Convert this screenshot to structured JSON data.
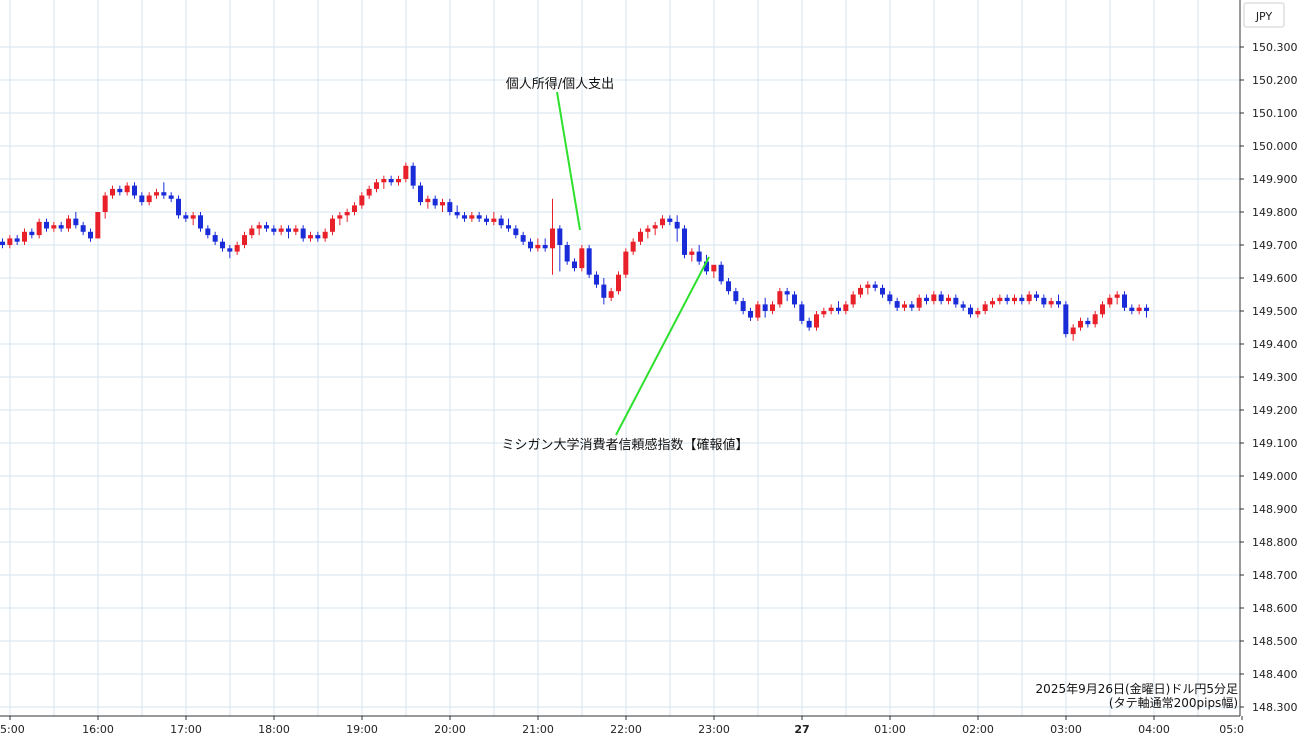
{
  "chart_data": {
    "type": "candlestick",
    "currency_label": "JPY",
    "footer": {
      "line1": "2025年9月26日(金曜日)ドル円5分足",
      "line2": "(タテ軸通常200pips幅)"
    },
    "ylim": [
      148.28,
      150.4
    ],
    "y_ticks": [
      "148.300",
      "148.400",
      "148.500",
      "148.600",
      "148.700",
      "148.800",
      "148.900",
      "149.000",
      "149.100",
      "149.200",
      "149.300",
      "149.400",
      "149.500",
      "149.600",
      "149.700",
      "149.800",
      "149.900",
      "150.000",
      "150.100",
      "150.200",
      "150.300"
    ],
    "x_ticks": [
      "5:00",
      "16:00",
      "17:00",
      "18:00",
      "19:00",
      "20:00",
      "21:00",
      "22:00",
      "23:00",
      "27",
      "01:00",
      "02:00",
      "03:00",
      "04:00",
      "05:0"
    ],
    "annotations": [
      {
        "label": "個人所得/個人支出",
        "time": "21:30"
      },
      {
        "label": "ミシガン大学消費者信頼感指数【確報値】",
        "time": "23:00"
      }
    ],
    "colors": {
      "up": "#e8202a",
      "down": "#1a2bd8",
      "annotation_line": "#2ee02e",
      "grid": "#d6e6ef"
    },
    "candles": [
      [
        149.71,
        149.72,
        149.69,
        149.7
      ],
      [
        149.7,
        149.73,
        149.69,
        149.72
      ],
      [
        149.72,
        149.73,
        149.7,
        149.71
      ],
      [
        149.71,
        149.75,
        149.7,
        149.74
      ],
      [
        149.74,
        149.75,
        149.72,
        149.73
      ],
      [
        149.73,
        149.78,
        149.72,
        149.77
      ],
      [
        149.77,
        149.78,
        149.74,
        149.75
      ],
      [
        149.75,
        149.77,
        149.74,
        149.76
      ],
      [
        149.76,
        149.77,
        149.74,
        149.75
      ],
      [
        149.75,
        149.79,
        149.74,
        149.78
      ],
      [
        149.78,
        149.8,
        149.75,
        149.76
      ],
      [
        149.76,
        149.77,
        149.73,
        149.74
      ],
      [
        149.74,
        149.75,
        149.71,
        149.72
      ],
      [
        149.72,
        149.8,
        149.72,
        149.8
      ],
      [
        149.8,
        149.86,
        149.78,
        149.85
      ],
      [
        149.85,
        149.88,
        149.84,
        149.87
      ],
      [
        149.87,
        149.88,
        149.85,
        149.86
      ],
      [
        149.86,
        149.89,
        149.85,
        149.88
      ],
      [
        149.88,
        149.89,
        149.84,
        149.85
      ],
      [
        149.85,
        149.86,
        149.82,
        149.83
      ],
      [
        149.83,
        149.86,
        149.82,
        149.85
      ],
      [
        149.85,
        149.87,
        149.84,
        149.86
      ],
      [
        149.86,
        149.89,
        149.84,
        149.85
      ],
      [
        149.85,
        149.86,
        149.83,
        149.84
      ],
      [
        149.84,
        149.85,
        149.78,
        149.79
      ],
      [
        149.79,
        149.8,
        149.77,
        149.78
      ],
      [
        149.78,
        149.8,
        149.76,
        149.79
      ],
      [
        149.79,
        149.8,
        149.74,
        149.75
      ],
      [
        149.75,
        149.76,
        149.72,
        149.73
      ],
      [
        149.73,
        149.74,
        149.7,
        149.71
      ],
      [
        149.71,
        149.72,
        149.68,
        149.69
      ],
      [
        149.69,
        149.7,
        149.66,
        149.68
      ],
      [
        149.68,
        149.71,
        149.67,
        149.7
      ],
      [
        149.7,
        149.74,
        149.69,
        149.73
      ],
      [
        149.73,
        149.76,
        149.72,
        149.75
      ],
      [
        149.75,
        149.77,
        149.73,
        149.76
      ],
      [
        149.76,
        149.77,
        149.74,
        149.75
      ],
      [
        149.75,
        149.76,
        149.73,
        149.74
      ],
      [
        149.74,
        149.76,
        149.73,
        149.75
      ],
      [
        149.75,
        149.76,
        149.72,
        149.74
      ],
      [
        149.74,
        149.76,
        149.73,
        149.75
      ],
      [
        149.75,
        149.76,
        149.71,
        149.72
      ],
      [
        149.72,
        149.74,
        149.71,
        149.73
      ],
      [
        149.73,
        149.74,
        149.71,
        149.72
      ],
      [
        149.72,
        149.75,
        149.71,
        149.74
      ],
      [
        149.74,
        149.79,
        149.73,
        149.78
      ],
      [
        149.78,
        149.8,
        149.76,
        149.79
      ],
      [
        149.79,
        149.81,
        149.77,
        149.8
      ],
      [
        149.8,
        149.83,
        149.79,
        149.82
      ],
      [
        149.82,
        149.86,
        149.81,
        149.85
      ],
      [
        149.85,
        149.88,
        149.84,
        149.87
      ],
      [
        149.87,
        149.9,
        149.86,
        149.89
      ],
      [
        149.89,
        149.91,
        149.87,
        149.9
      ],
      [
        149.9,
        149.91,
        149.88,
        149.89
      ],
      [
        149.89,
        149.91,
        149.88,
        149.9
      ],
      [
        149.9,
        149.95,
        149.89,
        149.94
      ],
      [
        149.94,
        149.95,
        149.87,
        149.88
      ],
      [
        149.88,
        149.89,
        149.82,
        149.83
      ],
      [
        149.83,
        149.85,
        149.81,
        149.84
      ],
      [
        149.84,
        149.85,
        149.81,
        149.82
      ],
      [
        149.82,
        149.84,
        149.8,
        149.83
      ],
      [
        149.83,
        149.84,
        149.79,
        149.8
      ],
      [
        149.8,
        149.82,
        149.78,
        149.79
      ],
      [
        149.79,
        149.8,
        149.77,
        149.78
      ],
      [
        149.78,
        149.8,
        149.77,
        149.79
      ],
      [
        149.79,
        149.8,
        149.77,
        149.78
      ],
      [
        149.78,
        149.79,
        149.76,
        149.77
      ],
      [
        149.77,
        149.8,
        149.76,
        149.78
      ],
      [
        149.78,
        149.79,
        149.75,
        149.76
      ],
      [
        149.76,
        149.78,
        149.74,
        149.75
      ],
      [
        149.75,
        149.76,
        149.72,
        149.73
      ],
      [
        149.73,
        149.74,
        149.7,
        149.71
      ],
      [
        149.71,
        149.72,
        149.68,
        149.69
      ],
      [
        149.69,
        149.72,
        149.68,
        149.7
      ],
      [
        149.7,
        149.72,
        149.68,
        149.69
      ],
      [
        149.69,
        149.84,
        149.61,
        149.75
      ],
      [
        149.75,
        149.76,
        149.62,
        149.7
      ],
      [
        149.7,
        149.71,
        149.64,
        149.65
      ],
      [
        149.65,
        149.66,
        149.62,
        149.63
      ],
      [
        149.63,
        149.7,
        149.62,
        149.69
      ],
      [
        149.69,
        149.7,
        149.6,
        149.61
      ],
      [
        149.61,
        149.62,
        149.57,
        149.58
      ],
      [
        149.58,
        149.6,
        149.52,
        149.54
      ],
      [
        149.54,
        149.57,
        149.53,
        149.56
      ],
      [
        149.56,
        149.62,
        149.55,
        149.61
      ],
      [
        149.61,
        149.69,
        149.6,
        149.68
      ],
      [
        149.68,
        149.72,
        149.67,
        149.71
      ],
      [
        149.71,
        149.75,
        149.7,
        149.74
      ],
      [
        149.74,
        149.76,
        149.72,
        149.75
      ],
      [
        149.75,
        149.77,
        149.73,
        149.76
      ],
      [
        149.76,
        149.79,
        149.75,
        149.78
      ],
      [
        149.78,
        149.79,
        149.76,
        149.77
      ],
      [
        149.77,
        149.79,
        149.71,
        149.75
      ],
      [
        149.75,
        149.76,
        149.66,
        149.67
      ],
      [
        149.67,
        149.69,
        149.65,
        149.68
      ],
      [
        149.68,
        149.7,
        149.64,
        149.65
      ],
      [
        149.65,
        149.67,
        149.61,
        149.62
      ],
      [
        149.62,
        149.63,
        149.6,
        149.64
      ],
      [
        149.64,
        149.65,
        149.58,
        149.59
      ],
      [
        149.59,
        149.6,
        149.55,
        149.56
      ],
      [
        149.56,
        149.57,
        149.52,
        149.53
      ],
      [
        149.53,
        149.54,
        149.49,
        149.5
      ],
      [
        149.5,
        149.51,
        149.47,
        149.48
      ],
      [
        149.48,
        149.53,
        149.47,
        149.52
      ],
      [
        149.52,
        149.54,
        149.48,
        149.5
      ],
      [
        149.5,
        149.53,
        149.49,
        149.52
      ],
      [
        149.52,
        149.57,
        149.51,
        149.56
      ],
      [
        149.56,
        149.57,
        149.53,
        149.55
      ],
      [
        149.55,
        149.56,
        149.51,
        149.52
      ],
      [
        149.52,
        149.53,
        149.46,
        149.47
      ],
      [
        149.47,
        149.48,
        149.44,
        149.45
      ],
      [
        149.45,
        149.5,
        149.44,
        149.49
      ],
      [
        149.49,
        149.51,
        149.48,
        149.5
      ],
      [
        149.5,
        149.52,
        149.49,
        149.51
      ],
      [
        149.51,
        149.53,
        149.49,
        149.5
      ],
      [
        149.5,
        149.53,
        149.49,
        149.52
      ],
      [
        149.52,
        149.56,
        149.51,
        149.55
      ],
      [
        149.55,
        149.58,
        149.54,
        149.57
      ],
      [
        149.57,
        149.59,
        149.55,
        149.58
      ],
      [
        149.58,
        149.59,
        149.56,
        149.57
      ],
      [
        149.57,
        149.58,
        149.54,
        149.55
      ],
      [
        149.55,
        149.56,
        149.52,
        149.53
      ],
      [
        149.53,
        149.54,
        149.5,
        149.51
      ],
      [
        149.51,
        149.53,
        149.5,
        149.52
      ],
      [
        149.52,
        149.53,
        149.5,
        149.51
      ],
      [
        149.51,
        149.55,
        149.5,
        149.54
      ],
      [
        149.54,
        149.55,
        149.52,
        149.53
      ],
      [
        149.53,
        149.56,
        149.52,
        149.55
      ],
      [
        149.55,
        149.56,
        149.52,
        149.53
      ],
      [
        149.53,
        149.55,
        149.52,
        149.54
      ],
      [
        149.54,
        149.55,
        149.51,
        149.52
      ],
      [
        149.52,
        149.53,
        149.5,
        149.51
      ],
      [
        149.51,
        149.52,
        149.48,
        149.49
      ],
      [
        149.49,
        149.51,
        149.48,
        149.5
      ],
      [
        149.5,
        149.53,
        149.49,
        149.52
      ],
      [
        149.52,
        149.54,
        149.51,
        149.53
      ],
      [
        149.53,
        149.55,
        149.52,
        149.54
      ],
      [
        149.54,
        149.55,
        149.52,
        149.53
      ],
      [
        149.53,
        149.55,
        149.52,
        149.54
      ],
      [
        149.54,
        149.55,
        149.52,
        149.53
      ],
      [
        149.53,
        149.56,
        149.52,
        149.55
      ],
      [
        149.55,
        149.56,
        149.53,
        149.54
      ],
      [
        149.54,
        149.55,
        149.51,
        149.52
      ],
      [
        149.52,
        149.54,
        149.51,
        149.53
      ],
      [
        149.53,
        149.55,
        149.51,
        149.52
      ],
      [
        149.52,
        149.53,
        149.42,
        149.43
      ],
      [
        149.43,
        149.46,
        149.41,
        149.45
      ],
      [
        149.45,
        149.48,
        149.44,
        149.47
      ],
      [
        149.47,
        149.48,
        149.45,
        149.46
      ],
      [
        149.46,
        149.5,
        149.45,
        149.49
      ],
      [
        149.49,
        149.53,
        149.48,
        149.52
      ],
      [
        149.52,
        149.55,
        149.51,
        149.54
      ],
      [
        149.54,
        149.56,
        149.52,
        149.55
      ],
      [
        149.55,
        149.56,
        149.5,
        149.51
      ],
      [
        149.51,
        149.52,
        149.49,
        149.5
      ],
      [
        149.5,
        149.52,
        149.49,
        149.51
      ],
      [
        149.51,
        149.52,
        149.48,
        149.5
      ]
    ]
  }
}
